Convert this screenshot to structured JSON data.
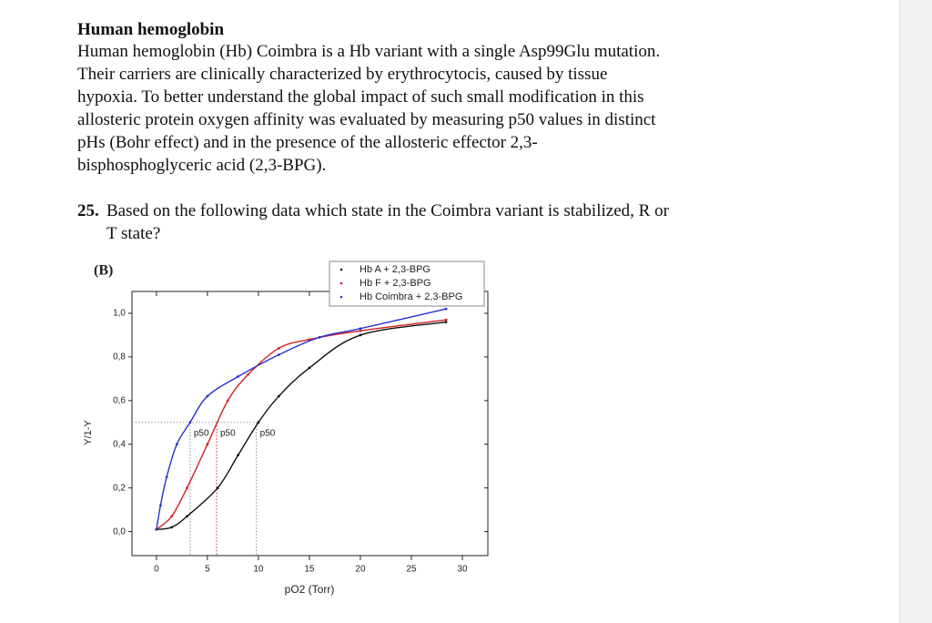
{
  "header": {
    "title": "Human hemoglobin"
  },
  "intro": {
    "lines": [
      "Human hemoglobin (Hb) Coimbra is a Hb variant with a single Asp99Glu mutation.",
      "Their carriers are clinically characterized by erythrocytocis, caused by tissue",
      "hypoxia. To better understand the global impact of such small modification in this",
      "allosteric protein oxygen affinity was evaluated by measuring p50 values in distinct",
      "pHs (Bohr effect) and in the presence of the allosteric effector 2,3-",
      "bisphosphoglyceric acid (2,3-BPG)."
    ]
  },
  "question": {
    "number": "25.",
    "lines": [
      "Based on the following data which state in the Coimbra variant is stabilized, R or",
      "T state?"
    ]
  },
  "chart_data": {
    "type": "line",
    "panel_label": "(B)",
    "x_label": "pO2 (Torr)",
    "y_label": "Y/1-Y",
    "xlim": [
      -2.4,
      32.5
    ],
    "ylim": [
      -0.11,
      1.1
    ],
    "xticks": [
      0,
      5,
      10,
      15,
      20,
      25,
      30
    ],
    "yticks": [
      {
        "value": 0,
        "label": "0,0"
      },
      {
        "value": 0.2,
        "label": "0,2"
      },
      {
        "value": 0.4,
        "label": "0,4"
      },
      {
        "value": 0.6,
        "label": "0,6"
      },
      {
        "value": 0.8,
        "label": "0,8"
      },
      {
        "value": 1.0,
        "label": "1,0"
      }
    ],
    "legend": "top-right",
    "series": [
      {
        "name": "Hb A + 2,3-BPG",
        "color": "#111111",
        "x": [
          0,
          1.5,
          3,
          6,
          8,
          10,
          12,
          15,
          20,
          28.4
        ],
        "values": [
          0.01,
          0.02,
          0.07,
          0.2,
          0.35,
          0.5,
          0.62,
          0.75,
          0.9,
          0.96
        ]
      },
      {
        "name": "Hb F + 2,3-BPG",
        "color": "#d42020",
        "x": [
          0,
          1.5,
          3,
          5,
          7,
          9,
          12,
          15,
          20,
          28.4
        ],
        "values": [
          0.01,
          0.07,
          0.2,
          0.4,
          0.6,
          0.72,
          0.84,
          0.88,
          0.92,
          0.97
        ]
      },
      {
        "name": "Hb Coimbra + 2,3-BPG",
        "color": "#2a30d0",
        "x": [
          0,
          0.4,
          1,
          2,
          3.3,
          5,
          8,
          12,
          16,
          20,
          28.4
        ],
        "values": [
          0.01,
          0.12,
          0.25,
          0.4,
          0.5,
          0.62,
          0.71,
          0.81,
          0.89,
          0.93,
          1.02
        ]
      }
    ],
    "annotations": [
      {
        "text": "p50",
        "x": 3.3,
        "y": 0.5,
        "color": "#888888"
      },
      {
        "text": "p50",
        "x": 5.9,
        "y": 0.5,
        "color": "#d42020"
      },
      {
        "text": "p50",
        "x": 9.8,
        "y": 0.5,
        "color": "#888888"
      }
    ]
  }
}
